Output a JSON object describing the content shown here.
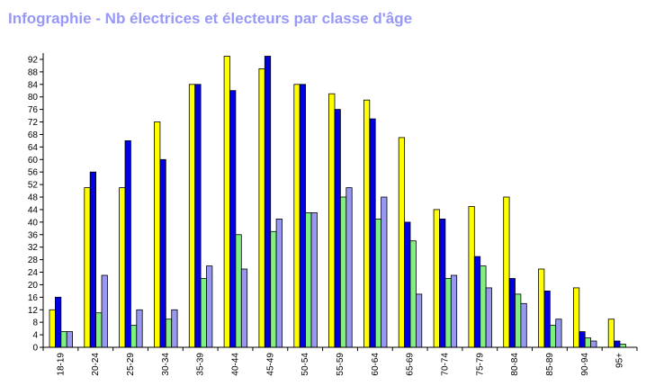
{
  "chart_data": {
    "type": "bar",
    "title": "Infographie - Nb électrices et électeurs par classe d'âge",
    "xlabel": "",
    "ylabel": "",
    "ylim": [
      0,
      94
    ],
    "yticks": [
      0,
      4,
      8,
      12,
      16,
      20,
      24,
      28,
      32,
      36,
      40,
      44,
      48,
      52,
      56,
      60,
      64,
      68,
      72,
      76,
      80,
      84,
      88,
      92
    ],
    "grid": false,
    "legend": "none",
    "categories": [
      "18-19",
      "20-24",
      "25-29",
      "30-34",
      "35-39",
      "40-44",
      "45-49",
      "50-54",
      "55-59",
      "60-64",
      "65-69",
      "70-74",
      "75-79",
      "80-84",
      "85-89",
      "90-94",
      "95+"
    ],
    "series": [
      {
        "color": "#ffff00",
        "values": [
          12,
          51,
          51,
          72,
          84,
          93,
          89,
          84,
          81,
          79,
          67,
          44,
          45,
          48,
          25,
          19,
          9
        ]
      },
      {
        "color": "#0000e0",
        "values": [
          16,
          56,
          66,
          60,
          84,
          82,
          93,
          84,
          76,
          73,
          40,
          41,
          29,
          22,
          18,
          5,
          2
        ]
      },
      {
        "color": "#80f080",
        "values": [
          5,
          11,
          7,
          9,
          22,
          36,
          37,
          43,
          48,
          41,
          34,
          22,
          26,
          17,
          7,
          3,
          1
        ]
      },
      {
        "color": "#9898f0",
        "values": [
          5,
          23,
          12,
          12,
          26,
          25,
          41,
          43,
          51,
          48,
          17,
          23,
          19,
          14,
          9,
          2,
          0
        ]
      }
    ]
  }
}
